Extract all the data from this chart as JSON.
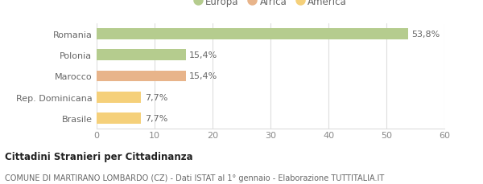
{
  "categories": [
    "Brasile",
    "Rep. Dominicana",
    "Marocco",
    "Polonia",
    "Romania"
  ],
  "values": [
    7.7,
    7.7,
    15.4,
    15.4,
    53.8
  ],
  "labels": [
    "7,7%",
    "7,7%",
    "15,4%",
    "15,4%",
    "53,8%"
  ],
  "colors": [
    "#f5d07a",
    "#f5d07a",
    "#e8b48a",
    "#b5cc8e",
    "#b5cc8e"
  ],
  "legend_items": [
    {
      "label": "Europa",
      "color": "#b5cc8e"
    },
    {
      "label": "Africa",
      "color": "#e8b48a"
    },
    {
      "label": "America",
      "color": "#f5d07a"
    }
  ],
  "xlim": [
    0,
    60
  ],
  "xticks": [
    0,
    10,
    20,
    30,
    40,
    50,
    60
  ],
  "title_bold": "Cittadini Stranieri per Cittadinanza",
  "subtitle": "COMUNE DI MARTIRANO LOMBARDO (CZ) - Dati ISTAT al 1° gennaio - Elaborazione TUTTITALIA.IT",
  "background_color": "#ffffff",
  "bar_height": 0.52,
  "grid_color": "#dddddd",
  "label_color": "#666666",
  "ytick_color": "#666666",
  "xtick_color": "#888888"
}
